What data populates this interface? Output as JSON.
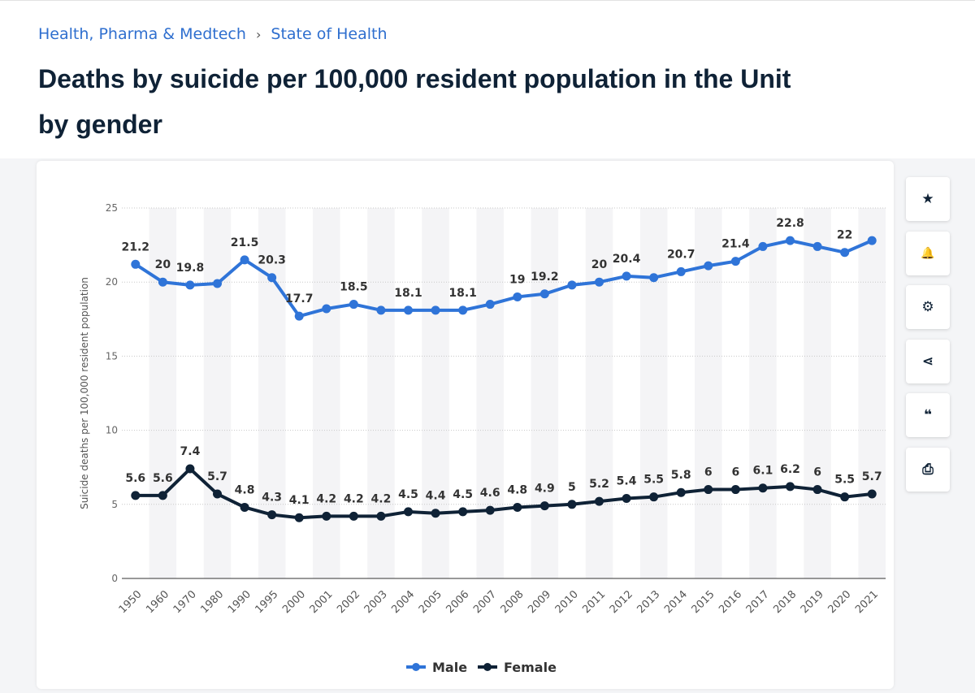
{
  "breadcrumb": {
    "items": [
      "Health, Pharma & Medtech",
      "State of Health"
    ],
    "separator": "›"
  },
  "page_title": {
    "line1": "Deaths by suicide per 100,000 resident population in the Unit",
    "line2": "by gender"
  },
  "toolbar": [
    {
      "icon": "star-icon",
      "glyph": "★"
    },
    {
      "icon": "bell-icon",
      "glyph": "🔔"
    },
    {
      "icon": "gear-icon",
      "glyph": "⚙"
    },
    {
      "icon": "share-icon",
      "glyph": "⋖"
    },
    {
      "icon": "quote-icon",
      "glyph": "❝"
    },
    {
      "icon": "print-icon",
      "glyph": "⎙"
    }
  ],
  "chart_data": {
    "type": "line",
    "ylabel": "Suicide deaths per 100,000 resident population",
    "ylim": [
      0,
      25
    ],
    "yticks": [
      0,
      5,
      10,
      15,
      20,
      25
    ],
    "grid": true,
    "legend_position": "bottom",
    "categories": [
      "1950",
      "1960",
      "1970",
      "1980",
      "1990",
      "1995",
      "2000",
      "2001",
      "2002",
      "2003",
      "2004",
      "2005",
      "2006",
      "2007",
      "2008",
      "2009",
      "2010",
      "2011",
      "2012",
      "2013",
      "2014",
      "2015",
      "2016",
      "2017",
      "2018",
      "2019",
      "2020",
      "2021"
    ],
    "series": [
      {
        "name": "Male",
        "color": "#2f74d8",
        "values": [
          21.2,
          20,
          19.8,
          19.9,
          21.5,
          20.3,
          17.7,
          18.2,
          18.5,
          18.1,
          18.1,
          18.1,
          18.1,
          18.5,
          19,
          19.2,
          19.8,
          20,
          20.4,
          20.3,
          20.7,
          21.1,
          21.4,
          22.4,
          22.8,
          22.4,
          22,
          22.8
        ],
        "labels": [
          "21.2",
          "20",
          "19.8",
          "",
          "21.5",
          "20.3",
          "17.7",
          "",
          "18.5",
          "",
          "18.1",
          "",
          "18.1",
          "",
          "19",
          "19.2",
          "",
          "20",
          "20.4",
          "",
          "20.7",
          "",
          "21.4",
          "",
          "22.8",
          "",
          "22",
          ""
        ]
      },
      {
        "name": "Female",
        "color": "#0f2236",
        "values": [
          5.6,
          5.6,
          7.4,
          5.7,
          4.8,
          4.3,
          4.1,
          4.2,
          4.2,
          4.2,
          4.5,
          4.4,
          4.5,
          4.6,
          4.8,
          4.9,
          5,
          5.2,
          5.4,
          5.5,
          5.8,
          6,
          6,
          6.1,
          6.2,
          6,
          5.5,
          5.7
        ],
        "labels": [
          "5.6",
          "5.6",
          "7.4",
          "5.7",
          "4.8",
          "4.3",
          "4.1",
          "4.2",
          "4.2",
          "4.2",
          "4.5",
          "4.4",
          "4.5",
          "4.6",
          "4.8",
          "4.9",
          "5",
          "5.2",
          "5.4",
          "5.5",
          "5.8",
          "6",
          "6",
          "6.1",
          "6.2",
          "6",
          "5.5",
          "5.7"
        ]
      }
    ]
  }
}
